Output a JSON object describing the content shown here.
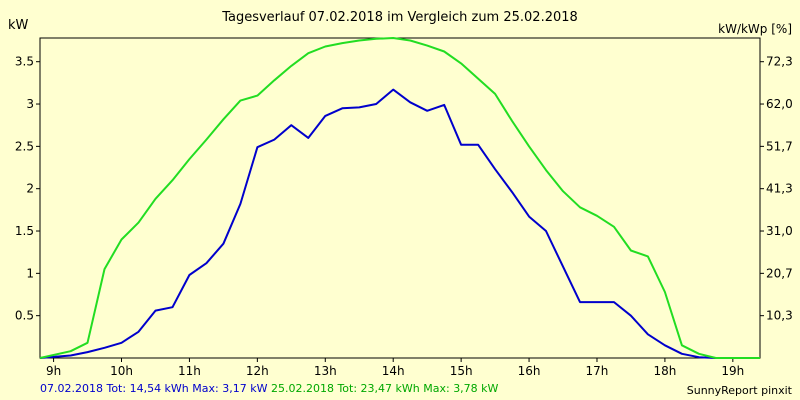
{
  "chart_data": {
    "type": "line",
    "title": "Tagesverlauf 07.02.2018 im Vergleich zum 25.02.2018",
    "ylabel_left": "kW",
    "ylabel_right": "kW/kWp [%]",
    "xlim": [
      8.8,
      19.4
    ],
    "ylim": [
      0,
      3.78
    ],
    "x_ticks": [
      9,
      10,
      11,
      12,
      13,
      14,
      15,
      16,
      17,
      18,
      19
    ],
    "x_tick_labels": [
      "9h",
      "10h",
      "11h",
      "12h",
      "13h",
      "14h",
      "15h",
      "16h",
      "17h",
      "18h",
      "19h"
    ],
    "y_ticks": [
      0.5,
      1,
      1.5,
      2,
      2.5,
      3,
      3.5
    ],
    "y_tick_labels": [
      "0.5",
      "1",
      "1.5",
      "2",
      "2.5",
      "3",
      "3.5"
    ],
    "y2_tick_labels": [
      "10,3",
      "20,7",
      "31,0",
      "41,3",
      "51,7",
      "62,0",
      "72,3"
    ],
    "grid": false,
    "background": "#ffffd0",
    "series": [
      {
        "name": "07.02.2018",
        "color": "#0000cc",
        "x": [
          8.8,
          9.25,
          9.5,
          9.75,
          10.0,
          10.25,
          10.5,
          10.75,
          11.0,
          11.25,
          11.5,
          11.75,
          12.0,
          12.25,
          12.5,
          12.75,
          13.0,
          13.25,
          13.5,
          13.75,
          14.0,
          14.25,
          14.5,
          14.75,
          15.0,
          15.25,
          15.5,
          15.75,
          16.0,
          16.25,
          16.5,
          16.75,
          17.0,
          17.25,
          17.5,
          17.75,
          18.0,
          18.25,
          18.5,
          18.75,
          19.0,
          19.25,
          19.4
        ],
        "y": [
          0.0,
          0.03,
          0.07,
          0.12,
          0.18,
          0.31,
          0.56,
          0.6,
          0.98,
          1.12,
          1.35,
          1.82,
          2.49,
          2.58,
          2.75,
          2.6,
          2.86,
          2.95,
          2.96,
          3.0,
          3.17,
          3.02,
          2.92,
          2.99,
          2.52,
          2.52,
          2.23,
          1.96,
          1.67,
          1.5,
          1.08,
          0.66,
          0.66,
          0.66,
          0.5,
          0.28,
          0.15,
          0.05,
          0.01,
          0.0,
          0.0,
          0.0,
          0.0
        ]
      },
      {
        "name": "25.02.2018",
        "color": "#22dd22",
        "x": [
          8.8,
          9.25,
          9.5,
          9.75,
          10.0,
          10.25,
          10.5,
          10.75,
          11.0,
          11.25,
          11.5,
          11.75,
          12.0,
          12.25,
          12.5,
          12.75,
          13.0,
          13.25,
          13.5,
          13.75,
          14.0,
          14.25,
          14.5,
          14.75,
          15.0,
          15.25,
          15.5,
          15.75,
          16.0,
          16.25,
          16.5,
          16.75,
          17.0,
          17.25,
          17.5,
          17.75,
          18.0,
          18.25,
          18.5,
          18.75,
          19.0,
          19.25,
          19.4
        ],
        "y": [
          0.0,
          0.08,
          0.18,
          1.05,
          1.4,
          1.6,
          1.88,
          2.1,
          2.35,
          2.58,
          2.82,
          3.04,
          3.1,
          3.28,
          3.45,
          3.6,
          3.68,
          3.72,
          3.75,
          3.77,
          3.78,
          3.75,
          3.69,
          3.62,
          3.48,
          3.3,
          3.12,
          2.8,
          2.5,
          2.22,
          1.97,
          1.78,
          1.68,
          1.55,
          1.27,
          1.2,
          0.78,
          0.15,
          0.05,
          0.0,
          0.0,
          0.0,
          0.0
        ]
      }
    ],
    "footer": {
      "s1_text": "07.02.2018 Tot: 14,54 kWh Max: 3,17 kW",
      "s2_text": "25.02.2018 Tot: 23,47 kWh Max: 3,78 kW",
      "credit": "SunnyReport pinxit"
    }
  }
}
